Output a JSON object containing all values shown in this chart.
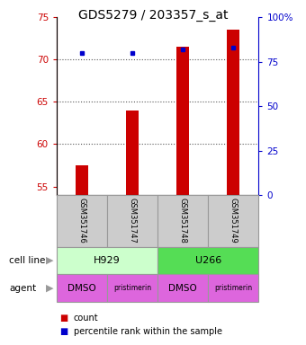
{
  "title": "GDS5279 / 203357_s_at",
  "samples": [
    "GSM351746",
    "GSM351747",
    "GSM351748",
    "GSM351749"
  ],
  "counts": [
    57.5,
    64.0,
    71.5,
    73.5
  ],
  "percentile_ranks": [
    80,
    80,
    82,
    83
  ],
  "ylim": [
    54,
    75
  ],
  "yticks": [
    55,
    60,
    65,
    70,
    75
  ],
  "y2ticks": [
    0,
    25,
    50,
    75,
    100
  ],
  "y2labels": [
    "0",
    "25",
    "50",
    "75",
    "100%"
  ],
  "cell_lines": [
    "H929",
    "U266"
  ],
  "cell_line_colors": [
    "#ccffcc",
    "#55dd55"
  ],
  "cell_line_spans": [
    [
      0,
      2
    ],
    [
      2,
      4
    ]
  ],
  "agents": [
    "DMSO",
    "pristimerin",
    "DMSO",
    "pristimerin"
  ],
  "agent_color": "#dd66dd",
  "bar_color": "#cc0000",
  "dot_color": "#0000cc",
  "sample_bg_color": "#cccccc",
  "legend_count_color": "#cc0000",
  "legend_dot_color": "#0000cc",
  "grid_color": "#555555",
  "title_fontsize": 10,
  "axis_label_color_left": "#cc0000",
  "axis_label_color_right": "#0000cc",
  "bar_width": 0.25
}
